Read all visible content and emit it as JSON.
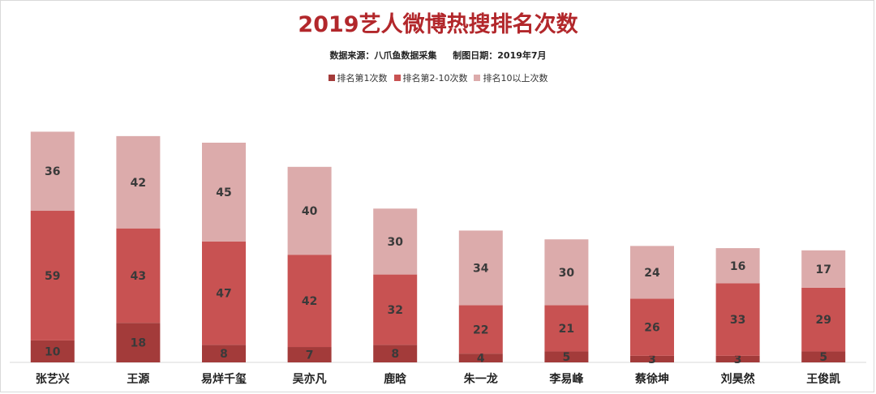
{
  "colors": {
    "title": "#b2272b",
    "rank1": "#a33b3a",
    "rank2_10": "#c85252",
    "rank10plus": "#dcabab",
    "axis": "#d9d9d9"
  },
  "chart_data": {
    "type": "bar",
    "stacked": true,
    "title": "2019艺人微博热搜排名次数",
    "subtitle_source": "数据来源：八爪鱼数据采集",
    "subtitle_date": "制图日期：2019年7月",
    "legend_position": "top",
    "grid": false,
    "categories": [
      "张艺兴",
      "王源",
      "易烊千玺",
      "吴亦凡",
      "鹿晗",
      "朱一龙",
      "李易峰",
      "蔡徐坤",
      "刘昊然",
      "王俊凯"
    ],
    "series": [
      {
        "name": "排名第1次数",
        "values": [
          10,
          18,
          8,
          7,
          8,
          4,
          5,
          3,
          3,
          5
        ]
      },
      {
        "name": "排名第2-10次数",
        "values": [
          59,
          43,
          47,
          42,
          32,
          22,
          21,
          26,
          33,
          29
        ]
      },
      {
        "name": "排名10以上次数",
        "values": [
          36,
          42,
          45,
          40,
          30,
          34,
          30,
          24,
          16,
          17
        ]
      }
    ],
    "ylim": [
      0,
      105
    ]
  }
}
